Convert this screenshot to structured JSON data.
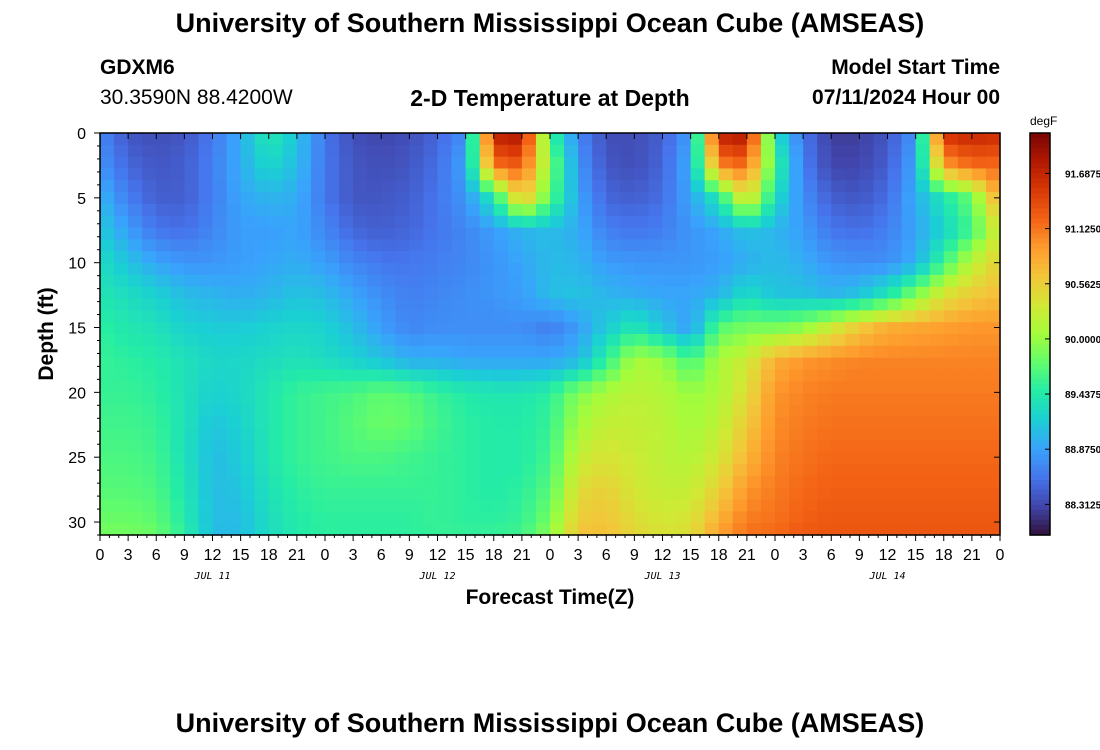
{
  "header": {
    "title": "University of Southern Mississippi Ocean Cube (AMSEAS)",
    "station": "GDXM6",
    "coords": "30.3590N  88.4200W",
    "plot_title": "2-D Temperature at Depth",
    "start_label": "Model Start Time",
    "start_value": "07/11/2024 Hour 00"
  },
  "footer": {
    "title": "University of Southern Mississippi Ocean Cube (AMSEAS)"
  },
  "colors": {
    "scale": [
      "#30123b",
      "#4145ab",
      "#4675ed",
      "#39a2fc",
      "#1bcfd4",
      "#24eca6",
      "#61fc6c",
      "#a4fc3b",
      "#d1e834",
      "#f3c63a",
      "#fe9b2d",
      "#f36315",
      "#d93806",
      "#b11901",
      "#7a0403"
    ]
  },
  "chart_data": {
    "type": "heatmap",
    "xlabel": "Forecast Time(Z)",
    "ylabel": "Depth (ft)",
    "colorbar_unit": "degF",
    "x_range_hours": [
      0,
      96
    ],
    "y_range_ft": [
      0,
      31
    ],
    "x_tick_labels": [
      "0",
      "3",
      "6",
      "9",
      "12",
      "15",
      "18",
      "21",
      "0",
      "3",
      "6",
      "9",
      "12",
      "15",
      "18",
      "21",
      "0",
      "3",
      "6",
      "9",
      "12",
      "15",
      "18",
      "21",
      "0",
      "3",
      "6",
      "9",
      "12",
      "15",
      "18",
      "21",
      "0"
    ],
    "day_labels": [
      "JUL 11",
      "JUL 12",
      "JUL 13",
      "JUL 14"
    ],
    "y_ticks": [
      0,
      5,
      10,
      15,
      20,
      25,
      30
    ],
    "colorbar_ticks": [
      {
        "value": 91.6875,
        "label": "91.6875"
      },
      {
        "value": 91.125,
        "label": "91.1250"
      },
      {
        "value": 90.5625,
        "label": "90.5625"
      },
      {
        "value": 90.0,
        "label": "90.0000"
      },
      {
        "value": 89.4375,
        "label": "89.4375"
      },
      {
        "value": 88.875,
        "label": "88.8750"
      },
      {
        "value": 88.3125,
        "label": "88.3125"
      }
    ],
    "vmin": 88.0,
    "vmax": 92.1,
    "depths": [
      0,
      2.5,
      5,
      7.5,
      10,
      12.5,
      15,
      17.5,
      20,
      22.5,
      25,
      27.5,
      30,
      31
    ],
    "times": [
      0,
      3,
      6,
      9,
      12,
      15,
      18,
      21,
      24,
      27,
      30,
      33,
      36,
      39,
      42,
      45,
      48,
      51,
      54,
      57,
      60,
      63,
      66,
      69,
      72,
      75,
      78,
      81,
      84,
      87,
      90,
      93,
      96
    ],
    "values": [
      [
        88.7,
        88.4,
        88.35,
        88.4,
        88.6,
        88.95,
        89.45,
        89.1,
        88.6,
        88.35,
        88.3,
        88.35,
        88.5,
        88.75,
        91.75,
        91.85,
        89.6,
        88.7,
        88.35,
        88.35,
        88.45,
        88.85,
        91.75,
        91.85,
        89.3,
        88.6,
        88.25,
        88.25,
        88.4,
        88.8,
        91.6,
        91.7,
        91.6
      ],
      [
        88.8,
        88.5,
        88.4,
        88.45,
        88.65,
        88.95,
        89.25,
        89.05,
        88.6,
        88.4,
        88.35,
        88.4,
        88.55,
        88.9,
        91.15,
        91.3,
        89.9,
        88.8,
        88.4,
        88.35,
        88.5,
        88.95,
        91.05,
        91.2,
        89.6,
        88.65,
        88.3,
        88.3,
        88.45,
        88.9,
        90.9,
        91.2,
        91.2
      ],
      [
        89.0,
        88.65,
        88.45,
        88.45,
        88.65,
        88.9,
        89.0,
        88.95,
        88.6,
        88.4,
        88.4,
        88.45,
        88.6,
        88.8,
        89.4,
        90.7,
        89.7,
        88.9,
        88.5,
        88.45,
        88.55,
        88.9,
        89.4,
        90.5,
        89.3,
        88.75,
        88.45,
        88.4,
        88.55,
        88.95,
        89.4,
        89.8,
        90.9
      ],
      [
        89.15,
        88.85,
        88.6,
        88.55,
        88.7,
        88.85,
        88.85,
        88.9,
        88.7,
        88.5,
        88.45,
        88.5,
        88.6,
        88.7,
        88.85,
        89.0,
        89.05,
        88.95,
        88.65,
        88.6,
        88.65,
        88.8,
        88.9,
        89.1,
        89.0,
        88.85,
        88.6,
        88.55,
        88.65,
        88.9,
        89.2,
        89.6,
        90.4
      ],
      [
        89.3,
        89.1,
        88.9,
        88.8,
        88.8,
        88.85,
        88.9,
        88.95,
        88.85,
        88.7,
        88.6,
        88.6,
        88.65,
        88.7,
        88.8,
        88.9,
        89.05,
        89.0,
        88.85,
        88.8,
        88.8,
        88.8,
        88.85,
        88.95,
        89.05,
        88.95,
        88.8,
        88.75,
        88.75,
        88.95,
        89.6,
        90.2,
        90.55
      ],
      [
        89.4,
        89.3,
        89.2,
        89.05,
        89.0,
        88.95,
        89.0,
        89.1,
        89.05,
        88.9,
        88.75,
        88.65,
        88.7,
        88.75,
        88.8,
        88.85,
        89.05,
        89.1,
        89.0,
        88.95,
        88.9,
        88.9,
        89.0,
        89.3,
        89.1,
        89.1,
        89.0,
        89.1,
        89.4,
        89.9,
        90.4,
        90.6,
        90.7
      ],
      [
        89.5,
        89.4,
        89.35,
        89.2,
        89.15,
        89.15,
        89.2,
        89.25,
        89.2,
        89.05,
        88.85,
        88.7,
        88.75,
        88.75,
        88.75,
        88.75,
        88.65,
        88.85,
        89.15,
        89.4,
        89.1,
        88.85,
        89.7,
        89.85,
        89.85,
        89.95,
        90.3,
        90.6,
        90.8,
        90.85,
        90.9,
        90.95,
        90.95
      ],
      [
        89.55,
        89.5,
        89.45,
        89.35,
        89.25,
        89.25,
        89.3,
        89.35,
        89.3,
        89.2,
        89.1,
        88.95,
        88.95,
        88.9,
        88.9,
        88.9,
        88.9,
        89.0,
        89.5,
        90.1,
        90.0,
        89.6,
        90.1,
        90.3,
        90.8,
        90.95,
        91.0,
        91.05,
        91.05,
        91.05,
        91.05,
        91.05,
        91.05
      ],
      [
        89.55,
        89.55,
        89.5,
        89.35,
        89.2,
        89.25,
        89.4,
        89.55,
        89.6,
        89.65,
        89.75,
        89.7,
        89.55,
        89.45,
        89.4,
        89.4,
        89.5,
        89.9,
        90.1,
        90.2,
        90.15,
        90.0,
        90.1,
        90.45,
        90.95,
        91.05,
        91.1,
        91.1,
        91.1,
        91.1,
        91.1,
        91.1,
        91.1
      ],
      [
        89.6,
        89.6,
        89.55,
        89.35,
        89.1,
        89.2,
        89.4,
        89.55,
        89.6,
        89.7,
        89.8,
        89.75,
        89.6,
        89.5,
        89.45,
        89.45,
        89.55,
        90.05,
        90.25,
        90.25,
        90.2,
        90.05,
        90.2,
        90.6,
        91.0,
        91.1,
        91.15,
        91.15,
        91.15,
        91.15,
        91.15,
        91.15,
        91.15
      ],
      [
        89.65,
        89.65,
        89.6,
        89.35,
        89.05,
        89.15,
        89.4,
        89.55,
        89.6,
        89.65,
        89.65,
        89.6,
        89.55,
        89.5,
        89.45,
        89.45,
        89.6,
        90.25,
        90.4,
        90.3,
        90.2,
        90.15,
        90.35,
        90.75,
        91.05,
        91.15,
        91.2,
        91.2,
        91.2,
        91.2,
        91.2,
        91.2,
        91.2
      ],
      [
        89.7,
        89.7,
        89.65,
        89.4,
        89.05,
        89.1,
        89.35,
        89.5,
        89.55,
        89.55,
        89.55,
        89.55,
        89.55,
        89.5,
        89.45,
        89.5,
        89.7,
        90.45,
        90.55,
        90.35,
        90.25,
        90.25,
        90.55,
        90.95,
        91.1,
        91.2,
        91.25,
        91.25,
        91.25,
        91.25,
        91.25,
        91.25,
        91.25
      ],
      [
        89.8,
        89.8,
        89.75,
        89.45,
        89.05,
        89.05,
        89.3,
        89.45,
        89.5,
        89.5,
        89.5,
        89.5,
        89.55,
        89.5,
        89.5,
        89.55,
        89.85,
        90.6,
        90.65,
        90.45,
        90.35,
        90.4,
        90.8,
        91.1,
        91.15,
        91.25,
        91.3,
        91.3,
        91.3,
        91.3,
        91.3,
        91.3,
        91.3
      ],
      [
        89.85,
        89.85,
        89.8,
        89.5,
        89.05,
        89.05,
        89.3,
        89.45,
        89.5,
        89.5,
        89.5,
        89.5,
        89.55,
        89.55,
        89.55,
        89.6,
        89.95,
        90.65,
        90.7,
        90.5,
        90.4,
        90.45,
        90.9,
        91.15,
        91.2,
        91.3,
        91.3,
        91.3,
        91.3,
        91.3,
        91.3,
        91.3,
        91.3
      ]
    ]
  }
}
